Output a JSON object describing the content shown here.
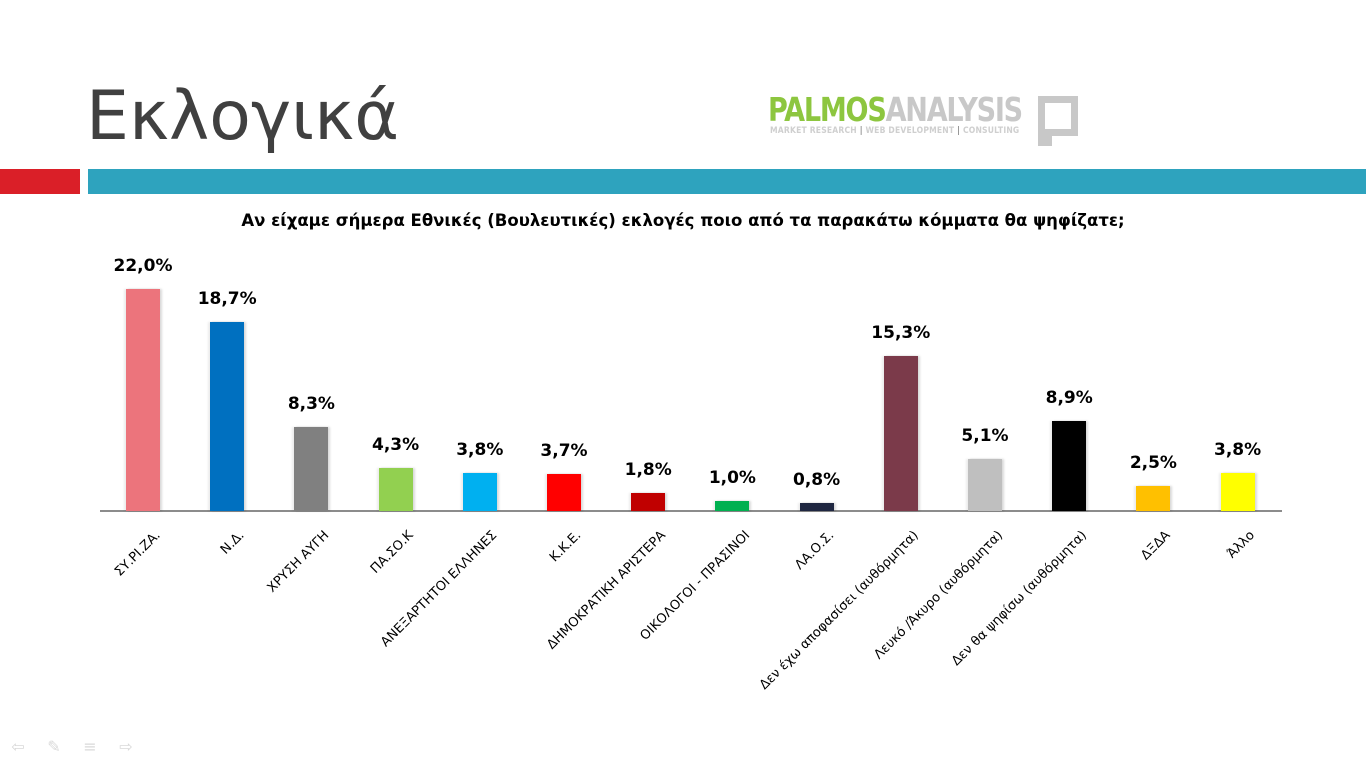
{
  "slide": {
    "title": "Εκλογικά",
    "logo": {
      "part1": "PALMOS",
      "part2": "ANALYSIS",
      "tagline_1": "MARKET RESEARCH",
      "tagline_2": "WEB DEVELOPMENT",
      "tagline_3": "CONSULTING",
      "separator": "|"
    },
    "colors": {
      "accent_red": "#da1f28",
      "accent_teal": "#2ea3be",
      "logo_green": "#8dc63f",
      "logo_grey": "#c8c8c8"
    },
    "nav": {
      "prev_icon": "⇦",
      "pen_icon": "✎",
      "menu_icon": "≡",
      "next_icon": "⇨"
    }
  },
  "chart_data": {
    "type": "bar",
    "title": "Αν είχαμε σήμερα Εθνικές (Βουλευτικές) εκλογές ποιο από τα παρακάτω κόμματα θα ψηφίζατε;",
    "xlabel": "",
    "ylabel": "",
    "ylim": [
      0,
      22
    ],
    "grid": false,
    "legend": "none",
    "categories": [
      "ΣΥ.ΡΙ.ΖΑ.",
      "Ν.Δ.",
      "ΧΡΥΣΗ ΑΥΓΗ",
      "ΠΑ.ΣΟ.Κ",
      "ΑΝΕΞΑΡΤΗΤΟΙ ΕΛΛΗΝΕΣ",
      "Κ.Κ.Ε.",
      "ΔΗΜΟΚΡΑΤΙΚΗ ΑΡΙΣΤΕΡΑ",
      "ΟΙΚΟΛΟΓΟΙ - ΠΡΑΣΙΝΟΙ",
      "ΛΑ.Ο.Σ.",
      "Δεν έχω αποφασίσει (αυθόρμητα)",
      "Λευκό /Άκυρο (αυθόρμητα)",
      "Δεν θα ψηφίσω (αυθόρμητα)",
      "ΔΞΔΑ",
      "Άλλο"
    ],
    "values": [
      22.0,
      18.7,
      8.3,
      4.3,
      3.8,
      3.7,
      1.8,
      1.0,
      0.8,
      15.3,
      5.1,
      8.9,
      2.5,
      3.8
    ],
    "labels": [
      "22,0%",
      "18,7%",
      "8,3%",
      "4,3%",
      "3,8%",
      "3,7%",
      "1,8%",
      "1,0%",
      "0,8%",
      "15,3%",
      "5,1%",
      "8,9%",
      "2,5%",
      "3,8%"
    ],
    "colors": [
      "#ec747c",
      "#0070c0",
      "#808080",
      "#92d050",
      "#00b0f0",
      "#ff0000",
      "#c00000",
      "#00b050",
      "#1f2741",
      "#7b3a4a",
      "#bfbfbf",
      "#000000",
      "#ffc000",
      "#ffff00"
    ]
  }
}
